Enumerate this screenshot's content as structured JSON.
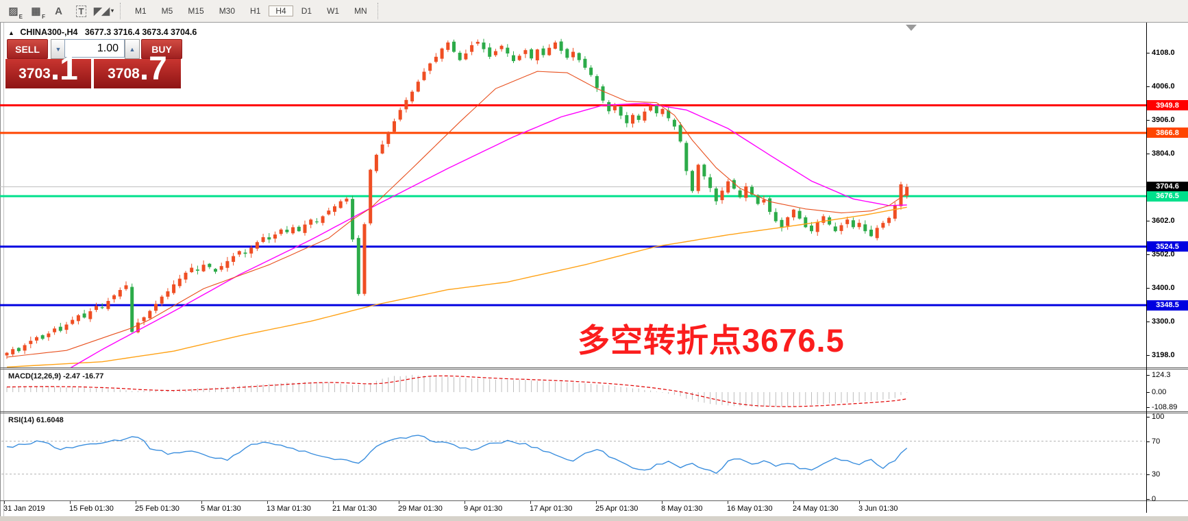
{
  "toolbar": {
    "icons": [
      {
        "name": "pattern-style-icon",
        "glyph": "▨",
        "sub": "E"
      },
      {
        "name": "grid-style-icon",
        "glyph": "▦",
        "sub": "F"
      },
      {
        "name": "font-tool-icon",
        "glyph": "A",
        "sub": ""
      },
      {
        "name": "text-tool-icon",
        "glyph": "T",
        "sub": ""
      },
      {
        "name": "cursor-arrows-icon",
        "glyph": "◤◢",
        "sub": "▾"
      }
    ],
    "timeframes": [
      {
        "label": "M1",
        "active": false
      },
      {
        "label": "M5",
        "active": false
      },
      {
        "label": "M15",
        "active": false
      },
      {
        "label": "M30",
        "active": false
      },
      {
        "label": "H1",
        "active": false
      },
      {
        "label": "H4",
        "active": true
      },
      {
        "label": "D1",
        "active": false
      },
      {
        "label": "W1",
        "active": false
      },
      {
        "label": "MN",
        "active": false
      }
    ]
  },
  "chart": {
    "title": {
      "collapse_glyph": "▲",
      "symbol": "CHINA300-,H4",
      "ohlc": "3677.3 3716.4 3673.4 3704.6"
    },
    "trade_panel": {
      "sell_label": "SELL",
      "buy_label": "BUY",
      "volume": "1.00",
      "spin_down_glyph": "▼",
      "spin_up_glyph": "▲",
      "sell_price_int": "3703",
      "sell_price_frac": ".1",
      "buy_price_int": "3708",
      "buy_price_frac": ".7"
    },
    "annotation": {
      "text": "多空转折点3676.5"
    },
    "levels": [
      {
        "price": 3949.8,
        "color": "#ff0000",
        "width": 3
      },
      {
        "price": 3866.8,
        "color": "#ff4500",
        "width": 3
      },
      {
        "price": 3704.6,
        "color": "#bfbfbf",
        "width": 1
      },
      {
        "price": 3676.5,
        "color": "#00e08c",
        "width": 3
      },
      {
        "price": 3524.5,
        "color": "#0000e0",
        "width": 3
      },
      {
        "price": 3348.5,
        "color": "#0000e0",
        "width": 3
      }
    ],
    "price_axis": {
      "ticks": [
        {
          "label": "4108.0",
          "price": 4108
        },
        {
          "label": "4006.0",
          "price": 4006
        },
        {
          "label": "3906.0",
          "price": 3906
        },
        {
          "label": "3804.0",
          "price": 3804
        },
        {
          "label": "3602.0",
          "price": 3602
        },
        {
          "label": "3502.0",
          "price": 3502
        },
        {
          "label": "3400.0",
          "price": 3400
        },
        {
          "label": "3300.0",
          "price": 3300
        },
        {
          "label": "3198.0",
          "price": 3198
        }
      ],
      "badges": [
        {
          "label": "3949.8",
          "price": 3949.8,
          "bg": "#ff0000",
          "fg": "#ffffff"
        },
        {
          "label": "3866.8",
          "price": 3866.8,
          "bg": "#ff4500",
          "fg": "#ffffff"
        },
        {
          "label": "3704.6",
          "price": 3704.6,
          "bg": "#000000",
          "fg": "#ffffff"
        },
        {
          "label": "3676.5",
          "price": 3676.5,
          "bg": "#00e08c",
          "fg": "#ffffff"
        },
        {
          "label": "3524.5",
          "price": 3524.5,
          "bg": "#0000e0",
          "fg": "#ffffff"
        },
        {
          "label": "3348.5",
          "price": 3348.5,
          "bg": "#0000e0",
          "fg": "#ffffff"
        }
      ]
    },
    "time_axis": [
      "31 Jan 2019",
      "15 Feb 01:30",
      "25 Feb 01:30",
      "5 Mar 01:30",
      "13 Mar 01:30",
      "21 Mar 01:30",
      "29 Mar 01:30",
      "9 Apr 01:30",
      "17 Apr 01:30",
      "25 Apr 01:30",
      "8 May 01:30",
      "16 May 01:30",
      "24 May 01:30",
      "3 Jun 01:30"
    ]
  },
  "indicators": {
    "macd": {
      "label": "MACD(12,26,9) -2.47 -16.77",
      "scale": [
        124.3,
        0,
        -108.89
      ],
      "scale_labels": [
        "124.3",
        "0.00",
        "-108.89"
      ],
      "main": -2.47,
      "signal": -16.77
    },
    "rsi": {
      "label": "RSI(14) 61.6048",
      "value": 61.6048,
      "scale": [
        100,
        70,
        30,
        0
      ],
      "scale_labels": [
        "100",
        "70",
        "30",
        "0"
      ],
      "level_lines": [
        70,
        30
      ]
    }
  },
  "chart_data": {
    "type": "candlestick",
    "symbol": "CHINA300",
    "period": "H4",
    "last_candle": {
      "open": 3677.3,
      "high": 3716.4,
      "low": 3673.4,
      "close": 3704.6
    },
    "closes": [
      3205,
      3216,
      3210,
      3228,
      3241,
      3252,
      3247,
      3263,
      3278,
      3271,
      3290,
      3304,
      3318,
      3311,
      3330,
      3346,
      3342,
      3361,
      3378,
      3394,
      3408,
      3268,
      3296,
      3312,
      3331,
      3352,
      3374,
      3390,
      3411,
      3428,
      3446,
      3461,
      3452,
      3470,
      3463,
      3449,
      3466,
      3481,
      3496,
      3511,
      3503,
      3521,
      3538,
      3553,
      3546,
      3561,
      3576,
      3568,
      3583,
      3571,
      3591,
      3606,
      3598,
      3616,
      3633,
      3646,
      3661,
      3669,
      3546,
      3382,
      3592,
      3756,
      3801,
      3832,
      3868,
      3902,
      3936,
      3966,
      3991,
      4021,
      4051,
      4076,
      4096,
      4121,
      4139,
      4111,
      4086,
      4106,
      4131,
      4141,
      4119,
      4096,
      4113,
      4129,
      4106,
      4083,
      4099,
      4116,
      4091,
      4118,
      4101,
      4123,
      4139,
      4114,
      4093,
      4111,
      4086,
      4063,
      4041,
      4002,
      3964,
      3932,
      3951,
      3919,
      3896,
      3921,
      3906,
      3931,
      3949,
      3926,
      3939,
      3911,
      3886,
      3841,
      3752,
      3692,
      3771,
      3736,
      3701,
      3661,
      3693,
      3721,
      3699,
      3673,
      3706,
      3681,
      3653,
      3666,
      3629,
      3601,
      3581,
      3613,
      3636,
      3609,
      3583,
      3571,
      3599,
      3616,
      3591,
      3571,
      3589,
      3606,
      3583,
      3596,
      3571,
      3556,
      3581,
      3596,
      3611,
      3648,
      3712,
      3704.6
    ],
    "ma_fast_wp": [
      [
        0,
        3192
      ],
      [
        10,
        3212
      ],
      [
        21,
        3280
      ],
      [
        24,
        3305
      ],
      [
        33,
        3398
      ],
      [
        44,
        3470
      ],
      [
        54,
        3550
      ],
      [
        58,
        3606
      ],
      [
        61,
        3640
      ],
      [
        68,
        3760
      ],
      [
        76,
        3900
      ],
      [
        82,
        4000
      ],
      [
        89,
        4052
      ],
      [
        94,
        4048
      ],
      [
        99,
        4000
      ],
      [
        104,
        3962
      ],
      [
        109,
        3958
      ],
      [
        112,
        3920
      ],
      [
        115,
        3845
      ],
      [
        119,
        3762
      ],
      [
        123,
        3700
      ],
      [
        128,
        3660
      ],
      [
        134,
        3638
      ],
      [
        140,
        3626
      ],
      [
        145,
        3632
      ],
      [
        148,
        3648
      ],
      [
        151,
        3685
      ]
    ],
    "ma_mid_wp": [
      [
        9,
        3142
      ],
      [
        16,
        3215
      ],
      [
        28,
        3330
      ],
      [
        39,
        3440
      ],
      [
        51,
        3545
      ],
      [
        62,
        3650
      ],
      [
        74,
        3760
      ],
      [
        85,
        3855
      ],
      [
        93,
        3915
      ],
      [
        100,
        3950
      ],
      [
        107,
        3956
      ],
      [
        114,
        3936
      ],
      [
        121,
        3880
      ],
      [
        128,
        3800
      ],
      [
        135,
        3722
      ],
      [
        142,
        3668
      ],
      [
        148,
        3648
      ],
      [
        151,
        3650
      ]
    ],
    "ma_slow_wp": [
      [
        0,
        3162
      ],
      [
        16,
        3178
      ],
      [
        28,
        3210
      ],
      [
        39,
        3256
      ],
      [
        51,
        3300
      ],
      [
        62,
        3350
      ],
      [
        74,
        3395
      ],
      [
        84,
        3418
      ],
      [
        97,
        3470
      ],
      [
        109,
        3525
      ],
      [
        121,
        3560
      ],
      [
        133,
        3590
      ],
      [
        144,
        3620
      ],
      [
        151,
        3643
      ]
    ],
    "macd_wp": [
      [
        0,
        35
      ],
      [
        5,
        42
      ],
      [
        9,
        38
      ],
      [
        14,
        30
      ],
      [
        18,
        22
      ],
      [
        21,
        10
      ],
      [
        25,
        12
      ],
      [
        29,
        20
      ],
      [
        33,
        28
      ],
      [
        38,
        42
      ],
      [
        43,
        58
      ],
      [
        47,
        68
      ],
      [
        50,
        74
      ],
      [
        54,
        68
      ],
      [
        58,
        48
      ],
      [
        60,
        55
      ],
      [
        63,
        95
      ],
      [
        65,
        115
      ],
      [
        68,
        124
      ],
      [
        71,
        116
      ],
      [
        75,
        106
      ],
      [
        79,
        98
      ],
      [
        83,
        92
      ],
      [
        87,
        86
      ],
      [
        91,
        78
      ],
      [
        95,
        70
      ],
      [
        98,
        60
      ],
      [
        101,
        48
      ],
      [
        104,
        36
      ],
      [
        106,
        24
      ],
      [
        108,
        12
      ],
      [
        110,
        -4
      ],
      [
        112,
        -18
      ],
      [
        114,
        -45
      ],
      [
        116,
        -68
      ],
      [
        118,
        -85
      ],
      [
        120,
        -96
      ],
      [
        123,
        -104
      ],
      [
        126,
        -108
      ],
      [
        129,
        -105
      ],
      [
        132,
        -99
      ],
      [
        135,
        -92
      ],
      [
        138,
        -84
      ],
      [
        141,
        -76
      ],
      [
        144,
        -66
      ],
      [
        147,
        -55
      ],
      [
        149,
        -42
      ],
      [
        151,
        -2.5
      ]
    ],
    "rsi_wp": [
      [
        0,
        62
      ],
      [
        3,
        67
      ],
      [
        6,
        70
      ],
      [
        9,
        60
      ],
      [
        12,
        64
      ],
      [
        15,
        68
      ],
      [
        19,
        72
      ],
      [
        22,
        76
      ],
      [
        24,
        62
      ],
      [
        27,
        55
      ],
      [
        31,
        58
      ],
      [
        34,
        51
      ],
      [
        37,
        48
      ],
      [
        40,
        62
      ],
      [
        43,
        70
      ],
      [
        46,
        64
      ],
      [
        50,
        57
      ],
      [
        53,
        50
      ],
      [
        56,
        48
      ],
      [
        59,
        42
      ],
      [
        61,
        58
      ],
      [
        63,
        68
      ],
      [
        66,
        73
      ],
      [
        69,
        76
      ],
      [
        72,
        70
      ],
      [
        75,
        65
      ],
      [
        78,
        59
      ],
      [
        81,
        66
      ],
      [
        84,
        70
      ],
      [
        87,
        66
      ],
      [
        90,
        59
      ],
      [
        93,
        51
      ],
      [
        95,
        45
      ],
      [
        97,
        56
      ],
      [
        99,
        61
      ],
      [
        101,
        52
      ],
      [
        103,
        45
      ],
      [
        105,
        38
      ],
      [
        107,
        34
      ],
      [
        109,
        41
      ],
      [
        111,
        46
      ],
      [
        113,
        38
      ],
      [
        115,
        42
      ],
      [
        117,
        35
      ],
      [
        119,
        31
      ],
      [
        121,
        45
      ],
      [
        123,
        49
      ],
      [
        125,
        43
      ],
      [
        127,
        46
      ],
      [
        129,
        40
      ],
      [
        131,
        44
      ],
      [
        133,
        38
      ],
      [
        135,
        35
      ],
      [
        137,
        43
      ],
      [
        139,
        50
      ],
      [
        141,
        46
      ],
      [
        143,
        42
      ],
      [
        145,
        48
      ],
      [
        147,
        38
      ],
      [
        149,
        47
      ],
      [
        150,
        55
      ],
      [
        151,
        61.6
      ]
    ],
    "colors": {
      "up": "#ef4e23",
      "down": "#2cab49",
      "ma_fast": "#e8501e",
      "ma_mid": "#ff00ff",
      "ma_slow": "#ffa216",
      "macd_bar": "#bdbdbd",
      "macd_signal": "#e00000",
      "rsi_line": "#3a8ede",
      "rsi_level": "#b4b4b4"
    }
  }
}
